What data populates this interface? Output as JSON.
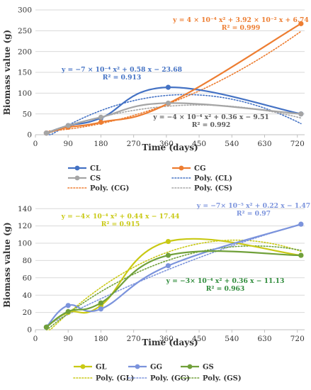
{
  "chart_data": [
    {
      "type": "line",
      "xlabel": "Time (days)",
      "ylabel": "Biomass value (g)",
      "xlim": [
        0,
        740
      ],
      "ylim": [
        0,
        300
      ],
      "xticks": [
        0,
        90,
        180,
        270,
        360,
        450,
        540,
        630,
        720
      ],
      "yticks": [
        0,
        50,
        100,
        150,
        200,
        250,
        300
      ],
      "grid": "horizontal",
      "legend_position": "bottom",
      "series": [
        {
          "name": "CL",
          "color": "#4472c4",
          "x": [
            30,
            90,
            180,
            365,
            730
          ],
          "y": [
            4,
            22,
            40,
            114,
            50
          ]
        },
        {
          "name": "CG",
          "color": "#ed7d31",
          "x": [
            30,
            90,
            180,
            365,
            730
          ],
          "y": [
            4,
            18,
            30,
            75,
            267
          ]
        },
        {
          "name": "CS",
          "color": "#a5a5a5",
          "x": [
            30,
            90,
            180,
            365,
            730
          ],
          "y": [
            4,
            22,
            42,
            76,
            50
          ]
        }
      ],
      "trendlines": [
        {
          "name": "Poly. (CL)",
          "of": "CL",
          "color": "#4472c4",
          "a": -0.0007,
          "b": 0.58,
          "c": -23.68
        },
        {
          "name": "Poly. (CG)",
          "of": "CG",
          "color": "#ed7d31",
          "a": 0.0004,
          "b": 0.0392,
          "c": 6.74
        },
        {
          "name": "Poly. (CS)",
          "of": "CS",
          "color": "#a5a5a5",
          "a": -0.0004,
          "b": 0.36,
          "c": -9.51
        }
      ],
      "equations": [
        {
          "of": "CL",
          "color": "#4472c4",
          "eq": "y = −7 × 10⁻⁴ x² + 0.58 x − 23.68",
          "r2": "R² = 0.913"
        },
        {
          "of": "CG",
          "color": "#ed7d31",
          "eq": "y = 4 × 10⁻⁴ x² + 3.92 × 10⁻² x + 6.74",
          "r2": "R² = 0.999"
        },
        {
          "of": "CS",
          "color": "#595959",
          "eq": "y = −4 × 10⁻⁴ x² + 0.36 x − 9.51",
          "r2": "R² = 0.992"
        }
      ],
      "legend": [
        "CL",
        "CG",
        "CS",
        "Poly. (CL)",
        "Poly. (CG)",
        "Poly. (CS)"
      ]
    },
    {
      "type": "line",
      "xlabel": "Time (days)",
      "ylabel": "Biomass value (g)",
      "xlim": [
        0,
        740
      ],
      "ylim": [
        0,
        150
      ],
      "xticks": [
        0,
        90,
        180,
        270,
        360,
        450,
        540,
        630,
        720
      ],
      "yticks": [
        0,
        20,
        40,
        60,
        80,
        100,
        120,
        140
      ],
      "grid": "horizontal",
      "legend_position": "bottom",
      "series": [
        {
          "name": "GL",
          "color": "#c9c914",
          "x": [
            30,
            90,
            180,
            365,
            730
          ],
          "y": [
            3,
            20,
            28,
            102,
            86
          ]
        },
        {
          "name": "GG",
          "color": "#7b93dc",
          "x": [
            30,
            90,
            180,
            365,
            730
          ],
          "y": [
            3,
            28,
            24,
            74,
            122
          ]
        },
        {
          "name": "GS",
          "color": "#70a03a",
          "x": [
            30,
            90,
            180,
            365,
            730
          ],
          "y": [
            3,
            21,
            31,
            86,
            86
          ]
        }
      ],
      "trendlines": [
        {
          "name": "Poly. (GL)",
          "of": "GL",
          "color": "#c9c914",
          "a": -0.0004,
          "b": 0.44,
          "c": -17.44
        },
        {
          "name": "Poly. (GG)",
          "of": "GG",
          "color": "#7b93dc",
          "a": -7e-05,
          "b": 0.22,
          "c": -1.47
        },
        {
          "name": "Poly. (GS)",
          "of": "GS",
          "color": "#70a03a",
          "a": -0.0003,
          "b": 0.36,
          "c": -11.13
        }
      ],
      "equations": [
        {
          "of": "GL",
          "color": "#c9c914",
          "eq": "y = −4× 10⁻⁴ x² + 0.44 x − 17.44",
          "r2": "R² = 0.915"
        },
        {
          "of": "GG",
          "color": "#7b93dc",
          "eq": "y = −7× 10⁻⁵ x² + 0.22 x − 1.47",
          "r2": "R² = 0.97"
        },
        {
          "of": "GS",
          "color": "#2e8b3a",
          "eq": "y = −3× 10⁻⁴ x² + 0.36 x − 11.13",
          "r2": "R² = 0.963"
        }
      ],
      "legend": [
        "GL",
        "GG",
        "GS",
        "Poly. (GL)",
        "Poly. (GG)",
        "Poly. (GS)"
      ]
    }
  ]
}
